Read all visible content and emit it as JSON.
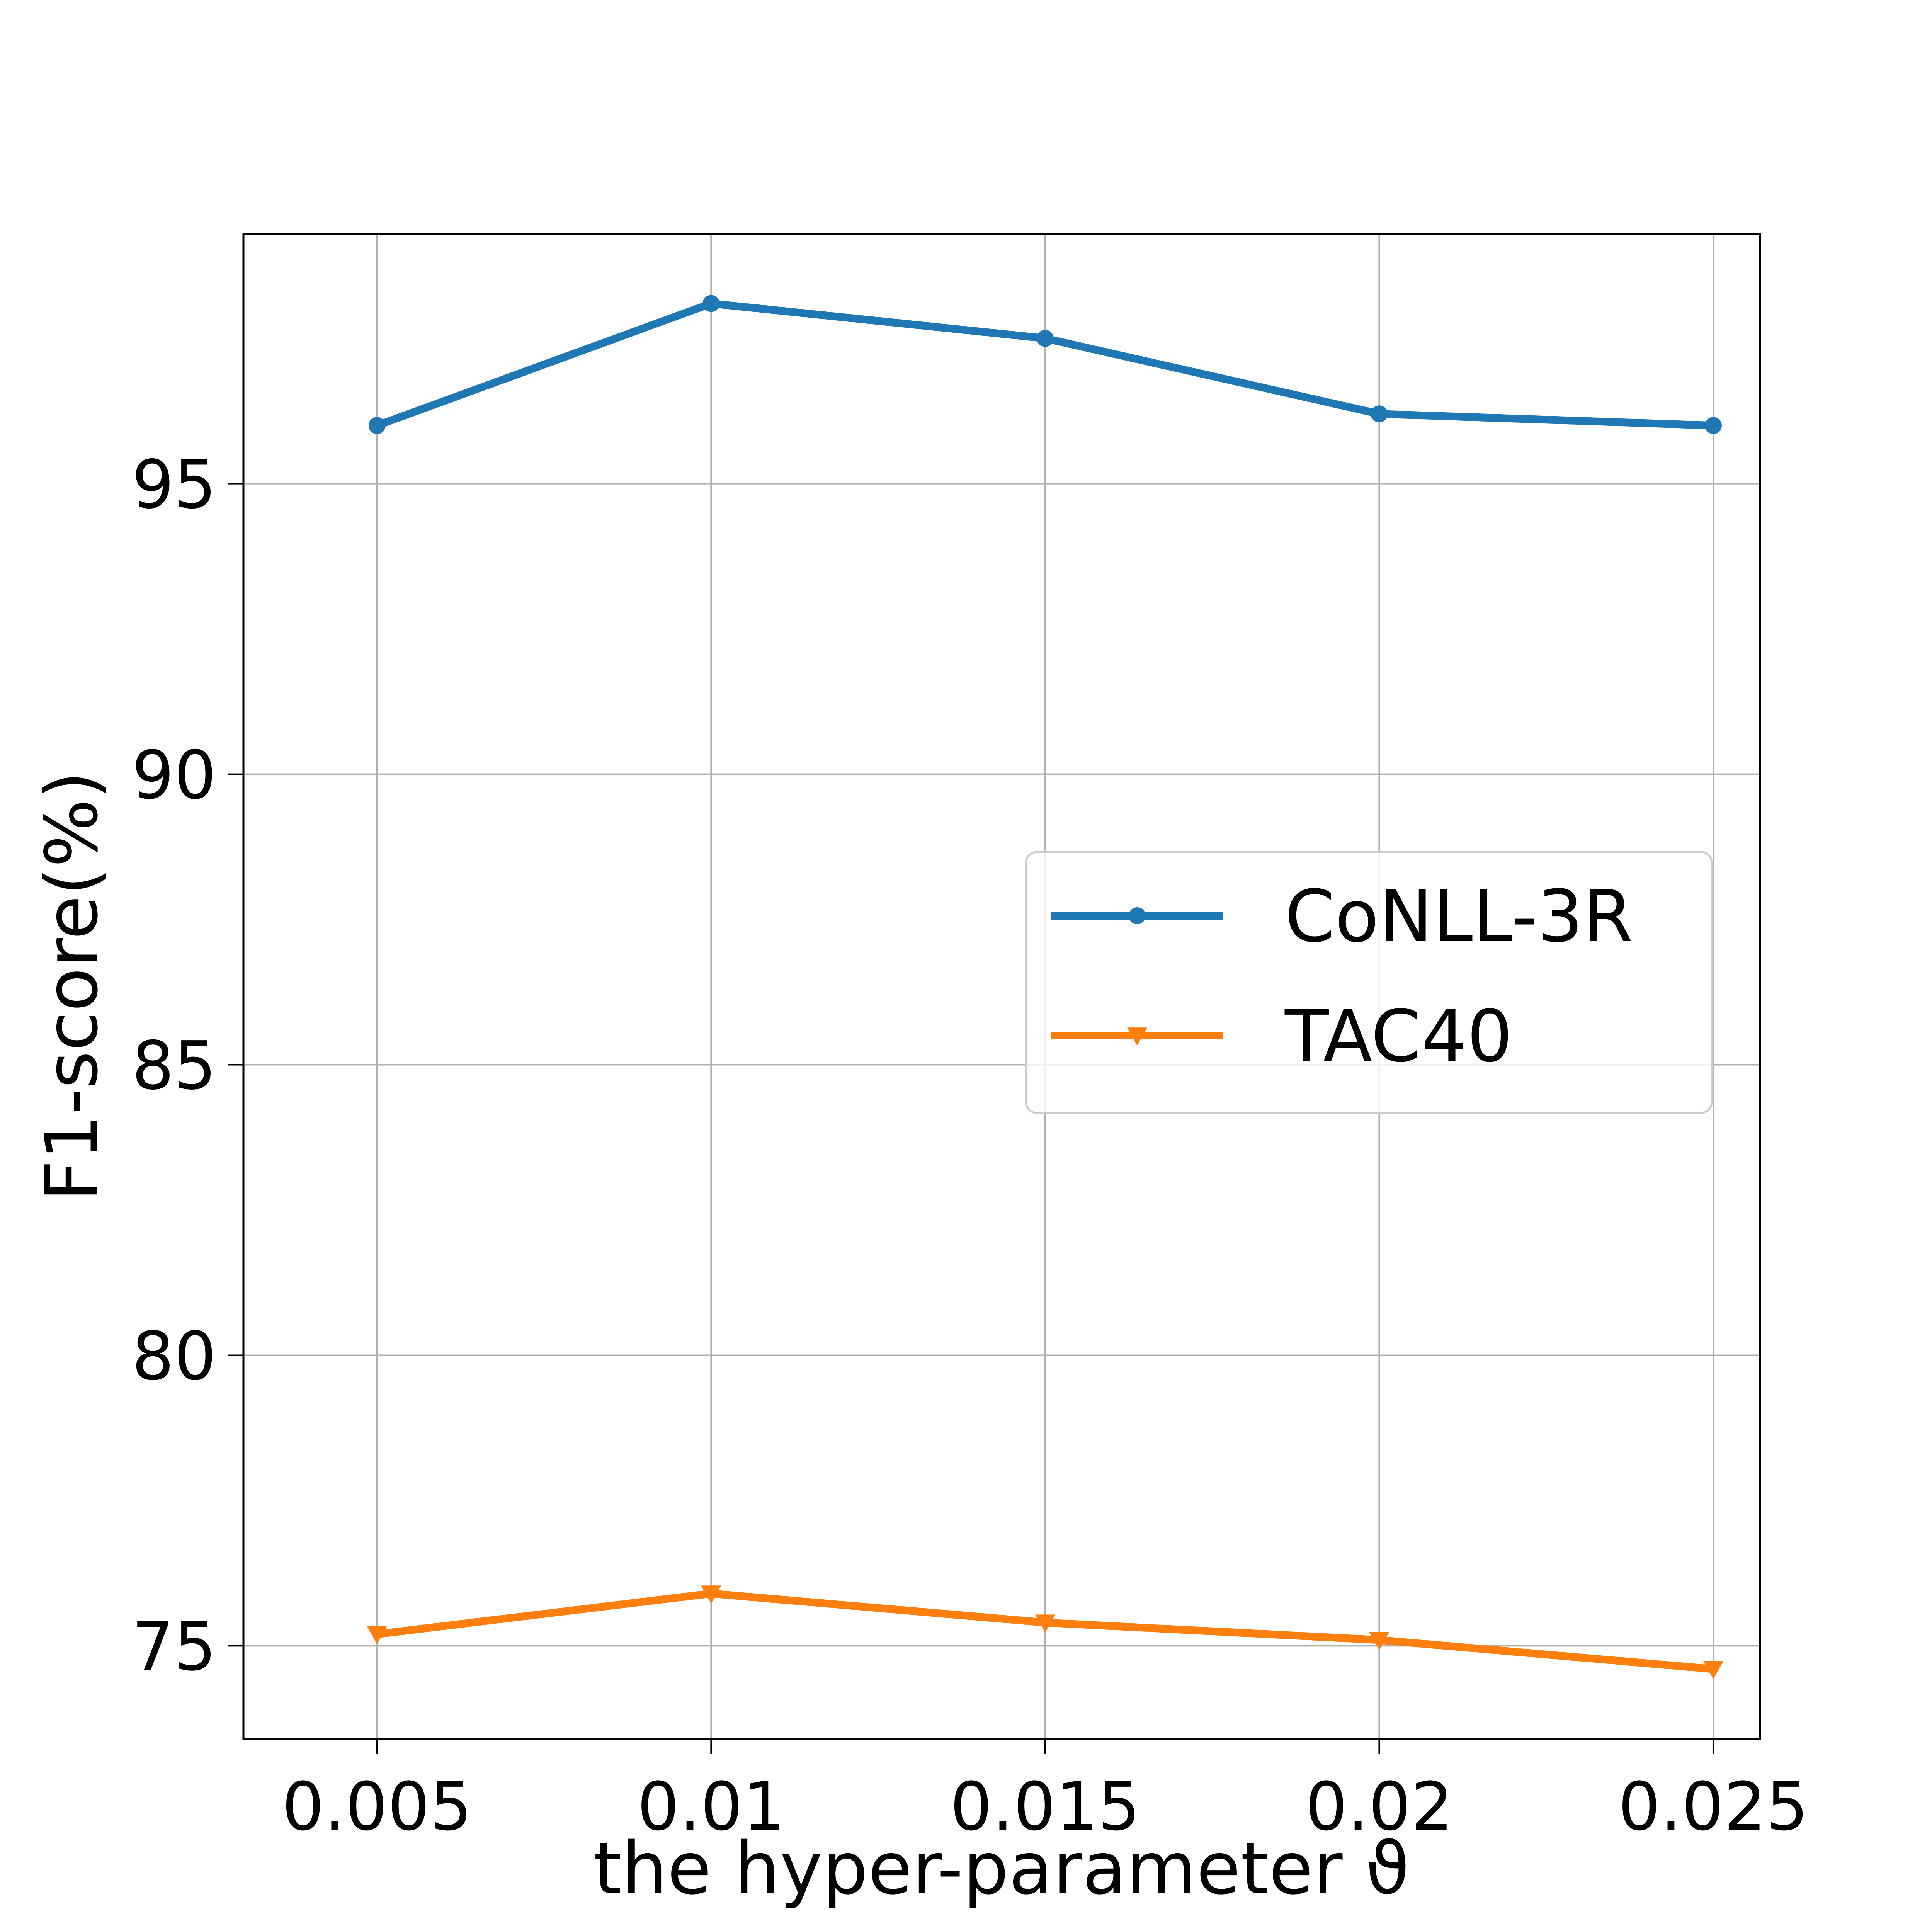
{
  "chart_data": {
    "type": "line",
    "x": [
      "0.005",
      "0.01",
      "0.015",
      "0.02",
      "0.025"
    ],
    "xlabel": "the hyper-parameter ϑ",
    "ylabel": "F1-score(%)",
    "yticks": [
      "75",
      "80",
      "85",
      "90",
      "95"
    ],
    "xlim": [
      0.003,
      0.0257
    ],
    "ylim": [
      73.4,
      99.3
    ],
    "grid": true,
    "legend_position": "center-right",
    "series": [
      {
        "name": "CoNLL-3R",
        "color": "#1f77b4",
        "marker": "circle",
        "values": [
          96.0,
          98.1,
          97.5,
          96.2,
          96.0
        ]
      },
      {
        "name": "TAC40",
        "color": "#ff7f0e",
        "marker": "triangle-down",
        "values": [
          75.2,
          75.9,
          75.4,
          75.1,
          74.6
        ]
      }
    ]
  }
}
